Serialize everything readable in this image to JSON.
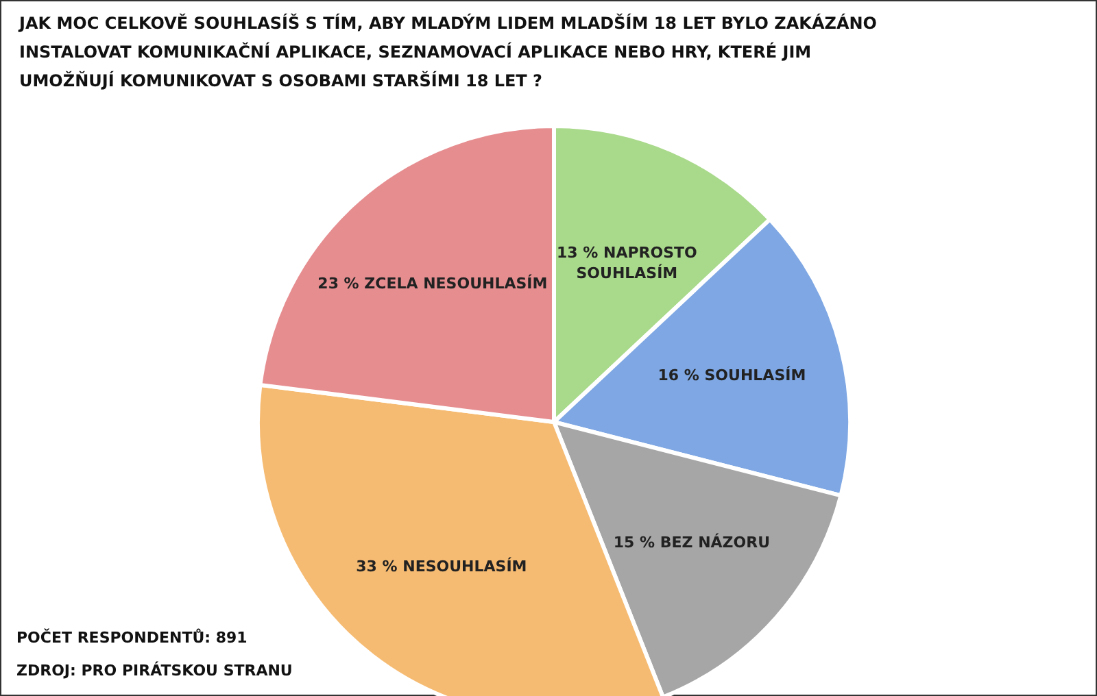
{
  "chart_data": {
    "type": "pie",
    "title": "JAK MOC CELKOVĚ SOUHLASÍŠ S TÍM, ABY MLADÝM LIDEM MLADŠÍM 18 LET BYLO ZAKÁZÁNO INSTALOVAT KOMUNIKAČNÍ APLIKACE, SEZNAMOVACÍ APLIKACE NEBO HRY, KTERÉ JIM UMOŽŇUJÍ KOMUNIKOVAT S OSOBAMI STARŠÍMI 18 LET ?",
    "categories": [
      "NAPROSTO SOUHLASÍM",
      "SOUHLASÍM",
      "BEZ NÁZORU",
      "NESOUHLASÍM",
      "ZCELA NESOUHLASÍM"
    ],
    "values": [
      13,
      16,
      15,
      33,
      23
    ],
    "value_labels": [
      "13 %",
      "16 %",
      "15 %",
      "33 %",
      "23 %"
    ],
    "colors": [
      "#a9d98b",
      "#7ea7e3",
      "#a6a6a6",
      "#f6bb72",
      "#e68d90"
    ],
    "annotations": [
      "POČET RESPONDENTŮ: 891",
      "ZDROJ: PRO PIRÁTSKOU STRANU"
    ]
  }
}
